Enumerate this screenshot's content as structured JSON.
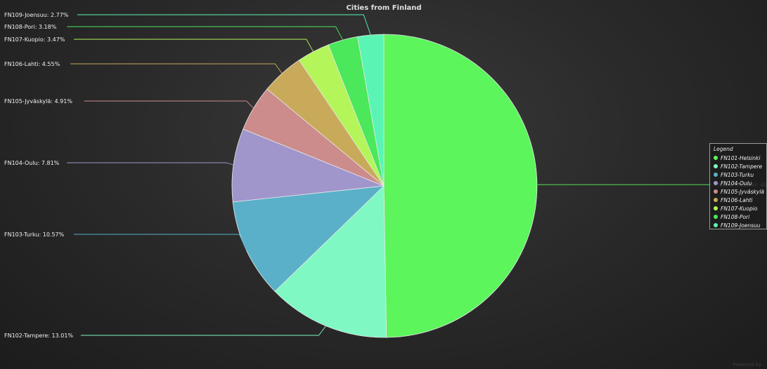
{
  "chart_data": {
    "type": "pie",
    "title": "Cities from Finland",
    "slices": [
      {
        "name": "FN101-Helsinki",
        "value": 49.73,
        "color": "#5cf55c",
        "label": "FN101-Helsinki: 49.73%"
      },
      {
        "name": "FN102-Tampere",
        "value": 13.01,
        "color": "#7ff8c4",
        "label": "FN102-Tampere: 13.01%"
      },
      {
        "name": "FN103-Turku",
        "value": 10.57,
        "color": "#5ab0c8",
        "label": "FN103-Turku: 10.57%"
      },
      {
        "name": "FN104-Oulu",
        "value": 7.81,
        "color": "#a096cc",
        "label": "FN104-Oulu: 7.81%"
      },
      {
        "name": "FN105-Jyväskylä",
        "value": 4.91,
        "color": "#cc8c8c",
        "label": "FN105-Jyväskylä: 4.91%"
      },
      {
        "name": "FN106-Lahti",
        "value": 4.55,
        "color": "#c8aa5a",
        "label": "FN106-Lahti: 4.55%"
      },
      {
        "name": "FN107-Kuopio",
        "value": 3.47,
        "color": "#b4f55a",
        "label": "FN107-Kuopio: 3.47%"
      },
      {
        "name": "FN108-Pori",
        "value": 3.18,
        "color": "#4ae85a",
        "label": "FN108-Pori: 3.18%"
      },
      {
        "name": "FN109-Joensuu",
        "value": 2.77,
        "color": "#5af5b4",
        "label": "FN109-Joensuu: 2.77%"
      }
    ],
    "legend": {
      "title": "Legend",
      "placement": "right"
    }
  },
  "watermark": "Powered by"
}
